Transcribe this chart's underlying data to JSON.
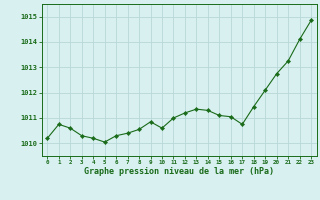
{
  "x": [
    0,
    1,
    2,
    3,
    4,
    5,
    6,
    7,
    8,
    9,
    10,
    11,
    12,
    13,
    14,
    15,
    16,
    17,
    18,
    19,
    20,
    21,
    22,
    23
  ],
  "y": [
    1010.2,
    1010.75,
    1010.6,
    1010.3,
    1010.2,
    1010.05,
    1010.3,
    1010.4,
    1010.55,
    1010.85,
    1010.6,
    1011.0,
    1011.2,
    1011.35,
    1011.3,
    1011.1,
    1011.05,
    1010.75,
    1011.45,
    1012.1,
    1012.75,
    1013.25,
    1014.1,
    1014.85
  ],
  "line_color": "#1a6b1a",
  "marker_color": "#1a6b1a",
  "bg_color": "#d8f0f0",
  "grid_color": "#b8d8d8",
  "xlabel": "Graphe pression niveau de la mer (hPa)",
  "xlabel_color": "#1a6b1a",
  "ytick_labels": [
    "1010",
    "1011",
    "1012",
    "1013",
    "1014",
    "1015"
  ],
  "ytick_vals": [
    1010,
    1011,
    1012,
    1013,
    1014,
    1015
  ],
  "ylim": [
    1009.5,
    1015.5
  ],
  "xlim": [
    -0.5,
    23.5
  ],
  "tick_color": "#1a6b1a",
  "axis_color": "#1a6b1a"
}
